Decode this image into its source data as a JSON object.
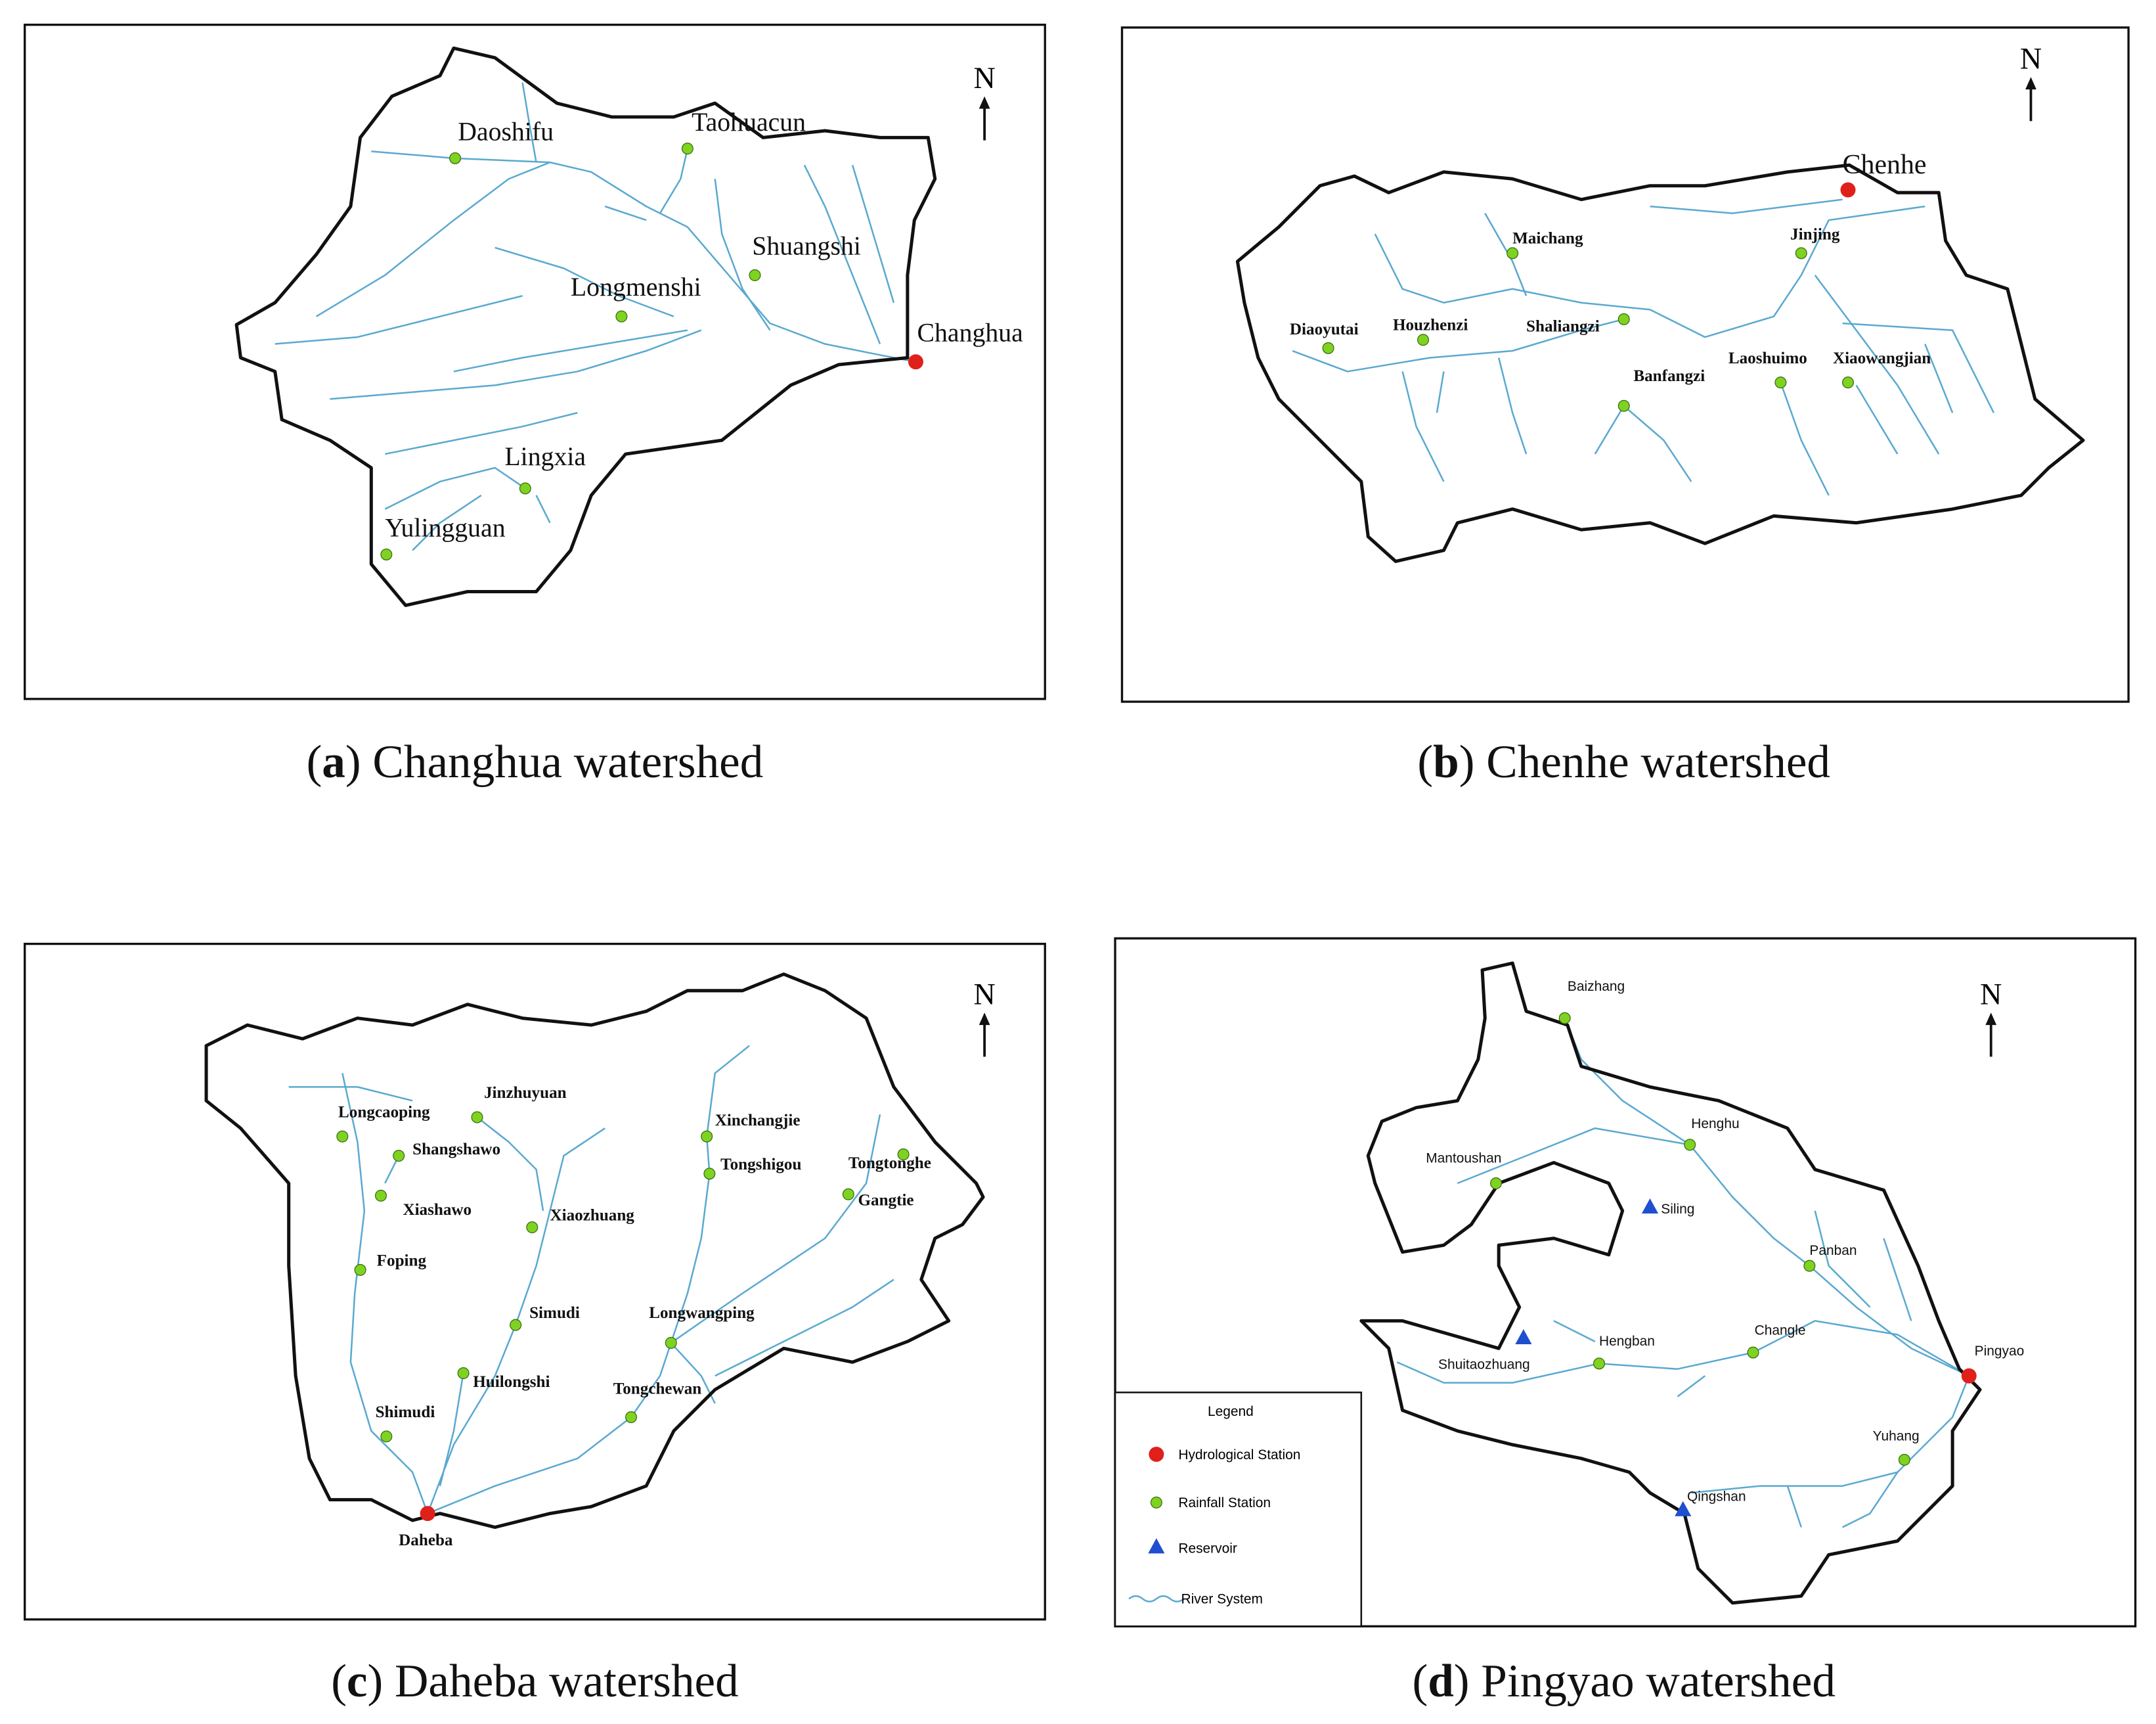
{
  "panels": [
    {
      "caption": {
        "open": "(",
        "letter": "a",
        "rest": ") Changhua watershed"
      },
      "north": "N",
      "stations": [
        {
          "name": "Daoshifu",
          "kind": "rainfall"
        },
        {
          "name": "Taohuacun",
          "kind": "rainfall"
        },
        {
          "name": "Shuangshi",
          "kind": "rainfall"
        },
        {
          "name": "Longmenshi",
          "kind": "rainfall"
        },
        {
          "name": "Changhua",
          "kind": "hydrological"
        },
        {
          "name": "Lingxia",
          "kind": "rainfall"
        },
        {
          "name": "Yulingguan",
          "kind": "rainfall"
        }
      ]
    },
    {
      "caption": {
        "open": "(",
        "letter": "b",
        "rest": ") Chenhe watershed"
      },
      "north": "N",
      "stations": [
        {
          "name": "Chenhe",
          "kind": "hydrological"
        },
        {
          "name": "Maichang",
          "kind": "rainfall"
        },
        {
          "name": "Jinjing",
          "kind": "rainfall"
        },
        {
          "name": "Diaoyutai",
          "kind": "rainfall"
        },
        {
          "name": "Houzhenzi",
          "kind": "rainfall"
        },
        {
          "name": "Shaliangzi",
          "kind": "rainfall"
        },
        {
          "name": "Banfangzi",
          "kind": "rainfall"
        },
        {
          "name": "Laoshuimo",
          "kind": "rainfall"
        },
        {
          "name": "Xiaowangjian",
          "kind": "rainfall"
        }
      ]
    },
    {
      "caption": {
        "open": "(",
        "letter": "c",
        "rest": ") Daheba watershed"
      },
      "north": "N",
      "stations": [
        {
          "name": "Longcaoping",
          "kind": "rainfall"
        },
        {
          "name": "Jinzhuyuan",
          "kind": "rainfall"
        },
        {
          "name": "Shangshawo",
          "kind": "rainfall"
        },
        {
          "name": "Xiashawo",
          "kind": "rainfall"
        },
        {
          "name": "Xiaozhuang",
          "kind": "rainfall"
        },
        {
          "name": "Foping",
          "kind": "rainfall"
        },
        {
          "name": "Simudi",
          "kind": "rainfall"
        },
        {
          "name": "Huilongshi",
          "kind": "rainfall"
        },
        {
          "name": "Shimudi",
          "kind": "rainfall"
        },
        {
          "name": "Daheba",
          "kind": "hydrological"
        },
        {
          "name": "Xinchangjie",
          "kind": "rainfall"
        },
        {
          "name": "Tongshigou",
          "kind": "rainfall"
        },
        {
          "name": "Tongtonghe",
          "kind": "rainfall"
        },
        {
          "name": "Gangtie",
          "kind": "rainfall"
        },
        {
          "name": "Longwangping",
          "kind": "rainfall"
        },
        {
          "name": "Tongchewan",
          "kind": "rainfall"
        }
      ]
    },
    {
      "caption": {
        "open": "(",
        "letter": "d",
        "rest": ") Pingyao watershed"
      },
      "north": "N",
      "stations": [
        {
          "name": "Baizhang",
          "kind": "rainfall"
        },
        {
          "name": "Henghu",
          "kind": "rainfall"
        },
        {
          "name": "Mantoushan",
          "kind": "rainfall"
        },
        {
          "name": "Siling",
          "kind": "reservoir"
        },
        {
          "name": "Panban",
          "kind": "rainfall"
        },
        {
          "name": "Pingyao",
          "kind": "hydrological"
        },
        {
          "name": "Changle",
          "kind": "rainfall"
        },
        {
          "name": "Hengban",
          "kind": "rainfall"
        },
        {
          "name": "Shuitaozhuang",
          "kind": "reservoir"
        },
        {
          "name": "Yuhang",
          "kind": "rainfall"
        },
        {
          "name": "Qingshan",
          "kind": "reservoir"
        }
      ],
      "legend": {
        "title": "Legend",
        "items": [
          {
            "label": "Hydrological Station",
            "kind": "hydrological"
          },
          {
            "label": "Rainfall Station",
            "kind": "rainfall"
          },
          {
            "label": "Reservoir",
            "kind": "reservoir"
          },
          {
            "label": "River System",
            "kind": "river"
          }
        ]
      }
    }
  ]
}
